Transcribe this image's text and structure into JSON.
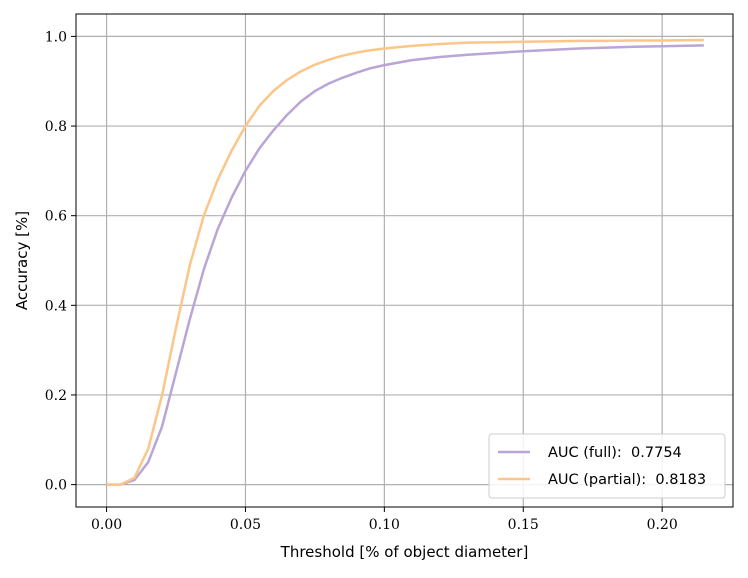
{
  "chart_data": {
    "type": "line",
    "title": "",
    "xlabel": "Threshold [% of object diameter]",
    "ylabel": "Accuracy [%]",
    "xlim": [
      -0.011,
      0.2255
    ],
    "ylim": [
      -0.05,
      1.05
    ],
    "xticks": [
      0.0,
      0.05,
      0.1,
      0.15,
      0.2
    ],
    "xtick_labels": [
      "0.00",
      "0.05",
      "0.10",
      "0.15",
      "0.20"
    ],
    "yticks": [
      0.0,
      0.2,
      0.4,
      0.6,
      0.8,
      1.0
    ],
    "ytick_labels": [
      "0.0",
      "0.2",
      "0.4",
      "0.6",
      "0.8",
      "1.0"
    ],
    "grid": true,
    "legend_position": "lower-right",
    "series": [
      {
        "name": "AUC (full):  0.7754",
        "color": "#b9a5d6",
        "x": [
          0.0,
          0.005,
          0.01,
          0.015,
          0.02,
          0.025,
          0.03,
          0.035,
          0.04,
          0.045,
          0.05,
          0.055,
          0.06,
          0.065,
          0.07,
          0.075,
          0.08,
          0.085,
          0.09,
          0.095,
          0.1,
          0.11,
          0.12,
          0.13,
          0.14,
          0.15,
          0.16,
          0.17,
          0.18,
          0.19,
          0.2,
          0.215
        ],
        "y": [
          0.0,
          0.0,
          0.01,
          0.05,
          0.13,
          0.25,
          0.37,
          0.48,
          0.57,
          0.64,
          0.7,
          0.75,
          0.79,
          0.825,
          0.855,
          0.878,
          0.895,
          0.908,
          0.919,
          0.929,
          0.936,
          0.947,
          0.954,
          0.959,
          0.963,
          0.967,
          0.97,
          0.973,
          0.975,
          0.977,
          0.978,
          0.98
        ]
      },
      {
        "name": "AUC (partial):  0.8183",
        "color": "#fcc689",
        "x": [
          0.0,
          0.005,
          0.01,
          0.015,
          0.02,
          0.025,
          0.03,
          0.035,
          0.04,
          0.045,
          0.05,
          0.055,
          0.06,
          0.065,
          0.07,
          0.075,
          0.08,
          0.085,
          0.09,
          0.095,
          0.1,
          0.11,
          0.12,
          0.13,
          0.14,
          0.15,
          0.16,
          0.17,
          0.18,
          0.19,
          0.2,
          0.215
        ],
        "y": [
          0.0,
          0.0,
          0.015,
          0.08,
          0.2,
          0.35,
          0.49,
          0.6,
          0.68,
          0.745,
          0.8,
          0.845,
          0.878,
          0.903,
          0.922,
          0.937,
          0.948,
          0.957,
          0.964,
          0.969,
          0.973,
          0.979,
          0.983,
          0.986,
          0.987,
          0.988,
          0.989,
          0.99,
          0.99,
          0.991,
          0.991,
          0.992
        ]
      }
    ]
  }
}
